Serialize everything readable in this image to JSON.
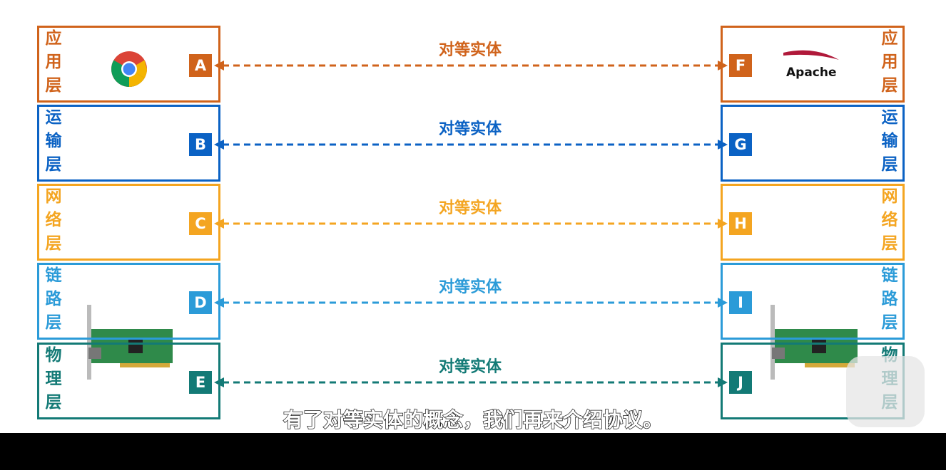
{
  "layers": [
    {
      "left_label": "应用层",
      "left_entity": "A",
      "peer_label": "对等实体",
      "right_entity": "F",
      "right_label": "应用层",
      "color": "#d0631b"
    },
    {
      "left_label": "运输层",
      "left_entity": "B",
      "peer_label": "对等实体",
      "right_entity": "G",
      "right_label": "运输层",
      "color": "#0b62c4"
    },
    {
      "left_label": "网络层",
      "left_entity": "C",
      "peer_label": "对等实体",
      "right_entity": "H",
      "right_label": "网络层",
      "color": "#f4a521"
    },
    {
      "left_label": "链路层",
      "left_entity": "D",
      "peer_label": "对等实体",
      "right_entity": "I",
      "right_label": "链路层",
      "color": "#2b9bd8"
    },
    {
      "left_label": "物理层",
      "left_entity": "E",
      "peer_label": "对等实体",
      "right_entity": "J",
      "right_label": "物理层",
      "color": "#137a76"
    }
  ],
  "apache_logo": "Apache",
  "subtitle": "有了对等实体的概念，我们再来介绍协议。"
}
